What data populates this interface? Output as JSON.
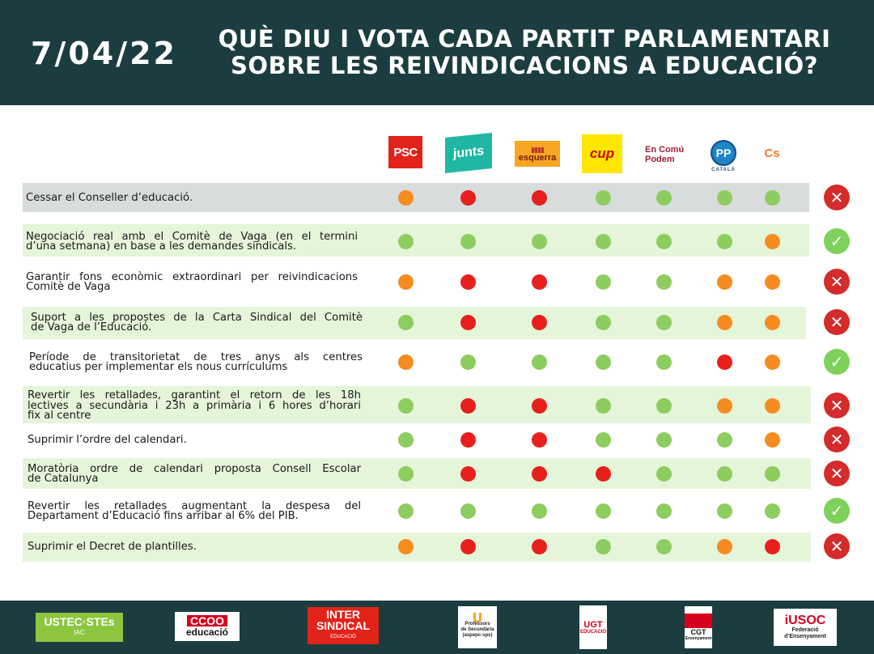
{
  "header": {
    "date": "7/04/22",
    "title_line1": "QUÈ DIU I VOTA CADA PARTIT PARLAMENTARI",
    "title_line2": "SOBRE LES REIVINDICACIONS A EDUCACIÓ?"
  },
  "parties": [
    {
      "key": "psc",
      "label": "PSC"
    },
    {
      "key": "junts",
      "label": "junts"
    },
    {
      "key": "esquerra",
      "label": "esquerra"
    },
    {
      "key": "cup",
      "label": "cup"
    },
    {
      "key": "comu",
      "label": "En Comú Podem"
    },
    {
      "key": "pp",
      "label": "PP"
    },
    {
      "key": "cs",
      "label": "Cs"
    }
  ],
  "party_extra": {
    "pp_sub": "CATALÀ",
    "comu_line1": "En Comú",
    "comu_line2": "Podem"
  },
  "colors": {
    "green": "#8dcc5e",
    "orange": "#f68c1f",
    "red": "#e8201d",
    "row_green": "#e4f5d9",
    "row_gray": "#d8dcdd",
    "result_yes": "#7ed15a",
    "result_no": "#d42b2b",
    "dark": "#1b3d40"
  },
  "icons": {
    "result_yes": "check-icon",
    "result_no": "cross-icon"
  },
  "rows": [
    {
      "lines": [
        "Cessar el Conseller d’educació."
      ],
      "votes": [
        "orange",
        "red",
        "red",
        "green",
        "green",
        "green",
        "green"
      ],
      "result": "no"
    },
    {
      "lines": [
        "Negociació real amb el Comitè de Vaga (en el termini",
        "d’una setmana) en base a les demandes sindicals."
      ],
      "votes": [
        "green",
        "green",
        "green",
        "green",
        "green",
        "green",
        "orange"
      ],
      "result": "yes"
    },
    {
      "lines": [
        "Garantir fons econòmic extraordinari per reivindicacions",
        "Comitè de Vaga"
      ],
      "votes": [
        "orange",
        "red",
        "red",
        "green",
        "green",
        "orange",
        "orange"
      ],
      "result": "no"
    },
    {
      "lines": [
        "Suport a les propostes de la Carta Sindical del Comitè",
        "de Vaga de l’Educació."
      ],
      "votes": [
        "green",
        "red",
        "red",
        "green",
        "green",
        "orange",
        "orange"
      ],
      "result": "no"
    },
    {
      "lines": [
        "Període de transitorietat de tres anys als centres",
        "educatius per implementar els nous currículums"
      ],
      "votes": [
        "orange",
        "green",
        "green",
        "green",
        "green",
        "red",
        "orange"
      ],
      "result": "yes"
    },
    {
      "lines": [
        "Revertir les retallades, garantint el retorn de les 18h",
        "lectives a secundària i 23h a primària i 6 hores d’horari",
        "fix al centre"
      ],
      "votes": [
        "green",
        "red",
        "red",
        "green",
        "green",
        "orange",
        "orange"
      ],
      "result": "no"
    },
    {
      "lines": [
        "Suprimir l’ordre del calendari."
      ],
      "votes": [
        "green",
        "red",
        "red",
        "green",
        "green",
        "green",
        "orange"
      ],
      "result": "no"
    },
    {
      "lines": [
        "Moratòria ordre de calendari proposta Consell Escolar",
        "de Catalunya"
      ],
      "votes": [
        "green",
        "red",
        "red",
        "red",
        "green",
        "green",
        "green"
      ],
      "result": "no"
    },
    {
      "lines": [
        "Revertir les retallades augmentant la despesa del",
        "Departament d’Educació fins arribar al 6% del PIB."
      ],
      "votes": [
        "green",
        "green",
        "green",
        "green",
        "green",
        "green",
        "green"
      ],
      "result": "yes"
    },
    {
      "lines": [
        "Suprimir el Decret de plantilles."
      ],
      "votes": [
        "orange",
        "red",
        "red",
        "green",
        "green",
        "orange",
        "red"
      ],
      "result": "no"
    }
  ],
  "footer": {
    "ustec": "USTEC·STEs",
    "ustec_sub": "IAC",
    "ccoo": "CCOO",
    "ccoo_sub": "educació",
    "inter": "INTER",
    "inter_2": "SINDICAL",
    "inter_sub": "EDUCACIÓ",
    "prof_1": "Professors",
    "prof_2": "de Secundària",
    "prof_3": "(aspepc·sps)",
    "ugt": "UGT",
    "ugt_sub": "EDUCACIÓ",
    "cgt": "CGT",
    "cgt_sub": "Ensenyament",
    "iusc": "iUSOC",
    "iusc_1": "Federació",
    "iusc_2": "d’Ensenyament"
  }
}
